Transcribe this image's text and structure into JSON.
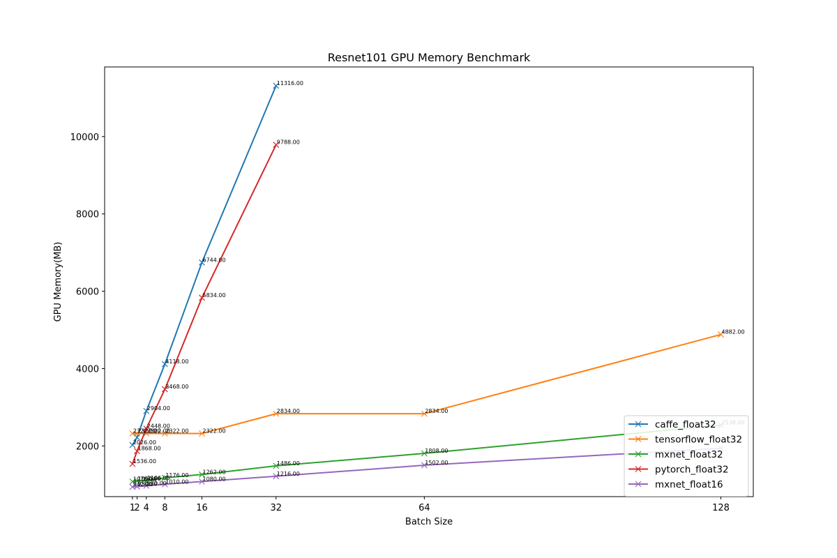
{
  "chart_data": {
    "type": "line",
    "title": "Resnet101 GPU Memory Benchmark",
    "xlabel": "Batch Size",
    "ylabel": "GPU Memory(MB)",
    "xlim": [
      -5,
      135
    ],
    "ylim": [
      690,
      11800
    ],
    "xticks": [
      1,
      2,
      4,
      8,
      16,
      32,
      64,
      128
    ],
    "yticks": [
      2000,
      4000,
      6000,
      8000,
      10000
    ],
    "marker": "x",
    "legend_position": "lower right",
    "grid": false,
    "series": [
      {
        "name": "caffe_float32",
        "color": "#1f77b4",
        "x": [
          1,
          2,
          4,
          8,
          16,
          32
        ],
        "y": [
          2026,
          2222,
          2904,
          4118,
          6744,
          11316
        ],
        "labels": [
          "2026.00",
          "",
          "2904.00",
          "4118.00",
          "6744.00",
          "11316.00"
        ]
      },
      {
        "name": "tensorflow_float32",
        "color": "#ff7f0e",
        "x": [
          1,
          2,
          4,
          8,
          16,
          32,
          64,
          128
        ],
        "y": [
          2322,
          2322,
          2322,
          2322,
          2322,
          2834,
          2834,
          4882
        ],
        "labels": [
          "2322.00",
          "2322.00",
          "2322.00",
          "2322.00",
          "2322.00",
          "2834.00",
          "2834.00",
          "4882.00"
        ]
      },
      {
        "name": "mxnet_float32",
        "color": "#2ca02c",
        "x": [
          1,
          2,
          4,
          8,
          16,
          32,
          64,
          128
        ],
        "y": [
          1078,
          1090,
          1106,
          1176,
          1262,
          1486,
          1808,
          2538
        ],
        "labels": [
          "1078.00",
          "1090.00",
          "1106.00",
          "1176.00",
          "1262.00",
          "1486.00",
          "1808.00",
          "2538.00"
        ]
      },
      {
        "name": "pytorch_float32",
        "color": "#d62728",
        "x": [
          1,
          2,
          4,
          8,
          16,
          32
        ],
        "y": [
          1536,
          1868,
          2448,
          3468,
          5834,
          9788
        ],
        "labels": [
          "1536.00",
          "1868.00",
          "2448.00",
          "3468.00",
          "5834.00",
          "9788.00"
        ]
      },
      {
        "name": "mxnet_float16",
        "color": "#9467bd",
        "x": [
          1,
          2,
          4,
          8,
          16,
          32,
          64,
          128
        ],
        "y": [
          942,
          950,
          970,
          1010,
          1080,
          1216,
          1502,
          1940
        ],
        "labels": [
          "942.00",
          "950.00",
          "970.00",
          "1010.00",
          "1080.00",
          "1216.00",
          "1502.00",
          ""
        ]
      }
    ]
  }
}
